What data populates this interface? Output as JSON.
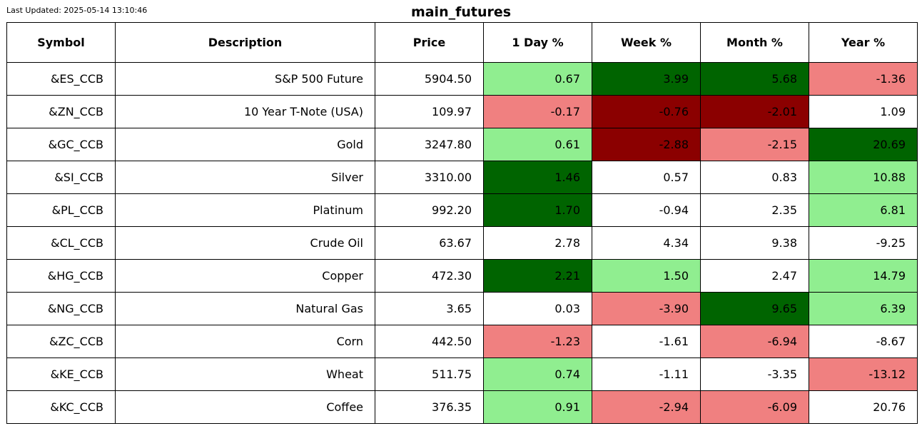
{
  "last_updated": "Last Updated: 2025-05-14 13:10:46",
  "chart_data": {
    "type": "table",
    "title": "main_futures",
    "columns": [
      "Symbol",
      "Description",
      "Price",
      "1 Day %",
      "Week %",
      "Month %",
      "Year %"
    ],
    "rows": [
      [
        "&ES_CCB",
        "S&P 500 Future",
        "5904.50",
        "0.67",
        "3.99",
        "5.68",
        "-1.36"
      ],
      [
        "&ZN_CCB",
        "10 Year T-Note (USA)",
        "109.97",
        "-0.17",
        "-0.76",
        "-2.01",
        "1.09"
      ],
      [
        "&GC_CCB",
        "Gold",
        "3247.80",
        "0.61",
        "-2.88",
        "-2.15",
        "20.69"
      ],
      [
        "&SI_CCB",
        "Silver",
        "3310.00",
        "1.46",
        "0.57",
        "0.83",
        "10.88"
      ],
      [
        "&PL_CCB",
        "Platinum",
        "992.20",
        "1.70",
        "-0.94",
        "2.35",
        "6.81"
      ],
      [
        "&CL_CCB",
        "Crude Oil",
        "63.67",
        "2.78",
        "4.34",
        "9.38",
        "-9.25"
      ],
      [
        "&HG_CCB",
        "Copper",
        "472.30",
        "2.21",
        "1.50",
        "2.47",
        "14.79"
      ],
      [
        "&NG_CCB",
        "Natural Gas",
        "3.65",
        "0.03",
        "-3.90",
        "9.65",
        "6.39"
      ],
      [
        "&ZC_CCB",
        "Corn",
        "442.50",
        "-1.23",
        "-1.61",
        "-6.94",
        "-8.67"
      ],
      [
        "&KE_CCB",
        "Wheat",
        "511.75",
        "0.74",
        "-1.11",
        "-3.35",
        "-13.12"
      ],
      [
        "&KC_CCB",
        "Coffee",
        "376.35",
        "0.91",
        "-2.94",
        "-6.09",
        "20.76"
      ]
    ],
    "cell_colors": [
      [
        "",
        "",
        "",
        "#90ee90",
        "#006400",
        "#006400",
        "#f08080"
      ],
      [
        "",
        "",
        "",
        "#f08080",
        "#8b0000",
        "#8b0000",
        ""
      ],
      [
        "",
        "",
        "",
        "#90ee90",
        "#8b0000",
        "#f08080",
        "#006400"
      ],
      [
        "",
        "",
        "",
        "#006400",
        "",
        "",
        "#90ee90"
      ],
      [
        "",
        "",
        "",
        "#006400",
        "",
        "",
        "#90ee90"
      ],
      [
        "",
        "",
        "",
        "",
        "",
        "",
        ""
      ],
      [
        "",
        "",
        "",
        "#006400",
        "#90ee90",
        "",
        "#90ee90"
      ],
      [
        "",
        "",
        "",
        "",
        "#f08080",
        "#006400",
        "#90ee90"
      ],
      [
        "",
        "",
        "",
        "#f08080",
        "",
        "#f08080",
        ""
      ],
      [
        "",
        "",
        "",
        "#90ee90",
        "",
        "",
        "#f08080"
      ],
      [
        "",
        "",
        "",
        "#90ee90",
        "#f08080",
        "#f08080",
        ""
      ]
    ]
  }
}
